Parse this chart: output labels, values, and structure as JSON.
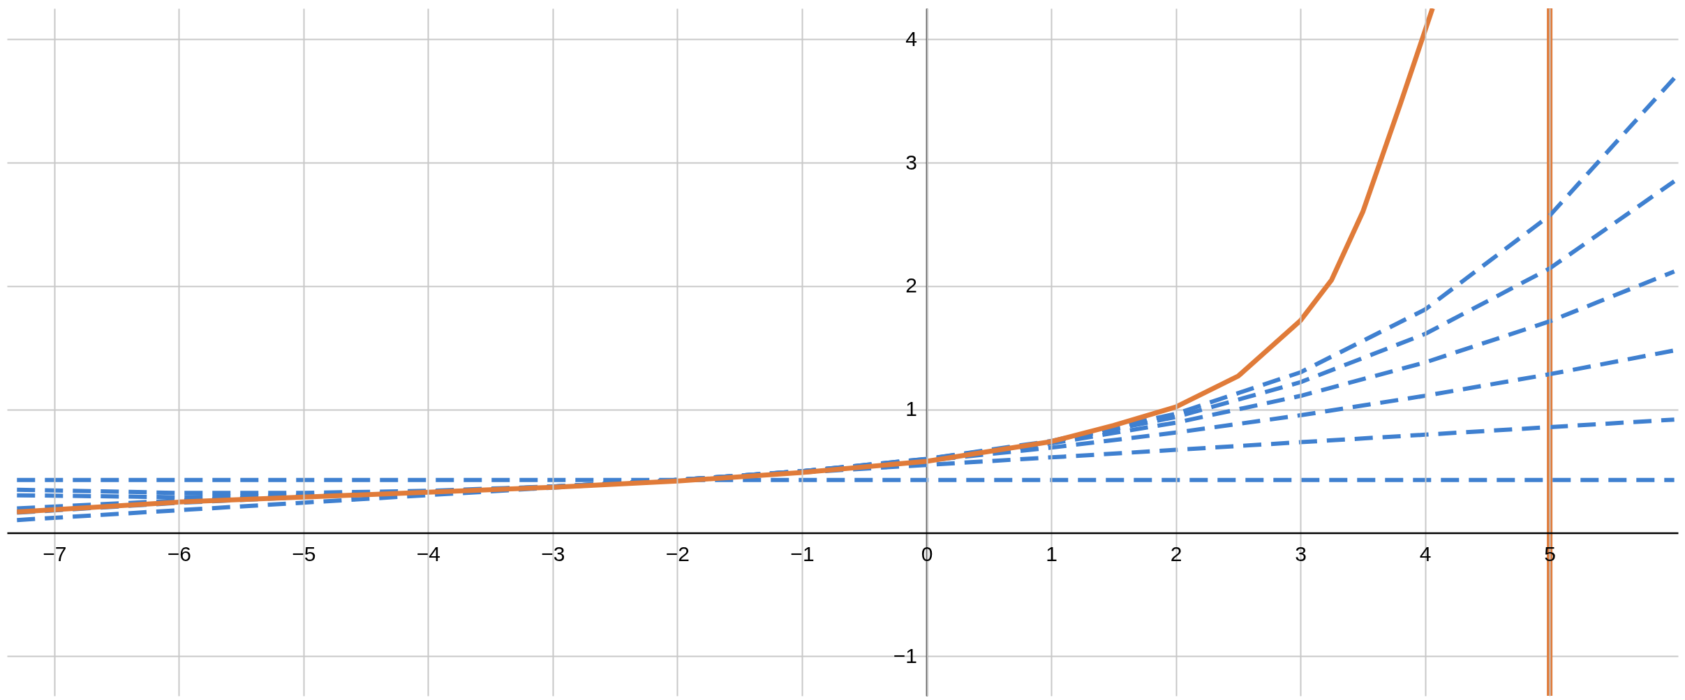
{
  "chart_data": {
    "type": "line",
    "x": [
      -7.3,
      -6,
      -5,
      -4,
      -3,
      -2,
      -1,
      0,
      1,
      2,
      3,
      4,
      5,
      6
    ],
    "series": [
      {
        "color": "#3f80d0",
        "line_style": "dashed",
        "values": [
          0.429,
          0.429,
          0.429,
          0.429,
          0.429,
          0.429,
          0.429,
          0.429,
          0.429,
          0.429,
          0.429,
          0.429,
          0.429,
          0.429
        ]
      },
      {
        "color": "#3f80d0",
        "line_style": "dashed",
        "values": [
          0.104,
          0.184,
          0.245,
          0.306,
          0.367,
          0.429,
          0.49,
          0.551,
          0.612,
          0.673,
          0.735,
          0.796,
          0.857,
          0.918
        ]
      },
      {
        "color": "#3f80d0",
        "line_style": "dashed",
        "values": [
          0.35,
          0.324,
          0.324,
          0.341,
          0.376,
          0.429,
          0.499,
          0.586,
          0.691,
          0.813,
          0.953,
          1.111,
          1.286,
          1.478
        ]
      },
      {
        "color": "#3f80d0",
        "line_style": "dashed",
        "values": [
          0.164,
          0.244,
          0.29,
          0.331,
          0.375,
          0.429,
          0.5,
          0.596,
          0.725,
          0.893,
          1.11,
          1.381,
          1.714,
          2.118
        ]
      },
      {
        "color": "#3f80d0",
        "line_style": "dashed",
        "values": [
          0.305,
          0.289,
          0.304,
          0.334,
          0.375,
          0.429,
          0.5,
          0.599,
          0.739,
          0.939,
          1.221,
          1.612,
          2.143,
          2.849
        ]
      },
      {
        "color": "#3f80d0",
        "line_style": "dashed",
        "values": [
          0.198,
          0.263,
          0.298,
          0.333,
          0.375,
          0.429,
          0.5,
          0.6,
          0.745,
          0.965,
          1.301,
          1.81,
          2.571,
          3.685
        ]
      },
      {
        "color": "#e07b39",
        "line_style": "solid",
        "x": [
          -7.3,
          -6,
          -5,
          -4,
          -3,
          -2,
          -1,
          0,
          1,
          1.5,
          2,
          2.5,
          3,
          3.25,
          3.5,
          3.8,
          4.06
        ],
        "values": [
          0.17,
          0.25,
          0.29,
          0.33,
          0.37,
          0.42,
          0.49,
          0.58,
          0.74,
          0.87,
          1.02,
          1.27,
          1.72,
          2.05,
          2.6,
          3.47,
          4.25
        ]
      }
    ],
    "ref_lines": [
      {
        "axis": "x",
        "value": 5,
        "color": "#e07b39",
        "line_style": "solid"
      }
    ],
    "xlim": [
      -7.38,
      6.03
    ],
    "ylim": [
      -1.32,
      4.25
    ],
    "xticks": [
      -7,
      -6,
      -5,
      -4,
      -3,
      -2,
      -1,
      0,
      1,
      2,
      3,
      4,
      5
    ],
    "yticks": [
      -1,
      1,
      2,
      3,
      4
    ],
    "grid": true,
    "marker": "none"
  }
}
